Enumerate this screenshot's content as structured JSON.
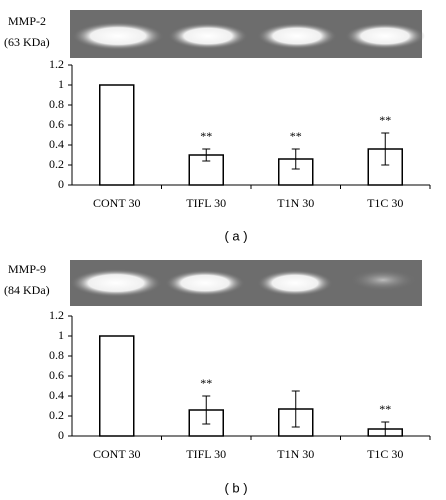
{
  "chart_data": [
    {
      "type": "bar",
      "label": "MMP-2",
      "sublabel": "(63 KDa)",
      "caption": "( a )",
      "categories": [
        "CONT 30",
        "TIFL 30",
        "T1N 30",
        "T1C 30"
      ],
      "values": [
        1,
        0.3,
        0.26,
        0.36
      ],
      "errors": [
        0,
        0.06,
        0.1,
        0.16
      ],
      "significance": [
        null,
        "**",
        "**",
        "**"
      ],
      "ylim": [
        0,
        1.2
      ],
      "yticks": [
        0,
        0.2,
        0.4,
        0.6,
        0.8,
        1,
        1.2
      ],
      "color": "#ffffff"
    },
    {
      "type": "bar",
      "label": "MMP-9",
      "sublabel": "(84 KDa)",
      "caption": "( b )",
      "categories": [
        "CONT 30",
        "TIFL 30",
        "T1N 30",
        "T1C 30"
      ],
      "values": [
        1,
        0.26,
        0.27,
        0.07
      ],
      "errors": [
        0,
        0.14,
        0.18,
        0.07
      ],
      "significance": [
        null,
        "**",
        null,
        "**"
      ],
      "ylim": [
        0,
        1.2
      ],
      "yticks": [
        0,
        0.2,
        0.4,
        0.6,
        0.8,
        1,
        1.2
      ],
      "color": "#ffffff"
    }
  ]
}
